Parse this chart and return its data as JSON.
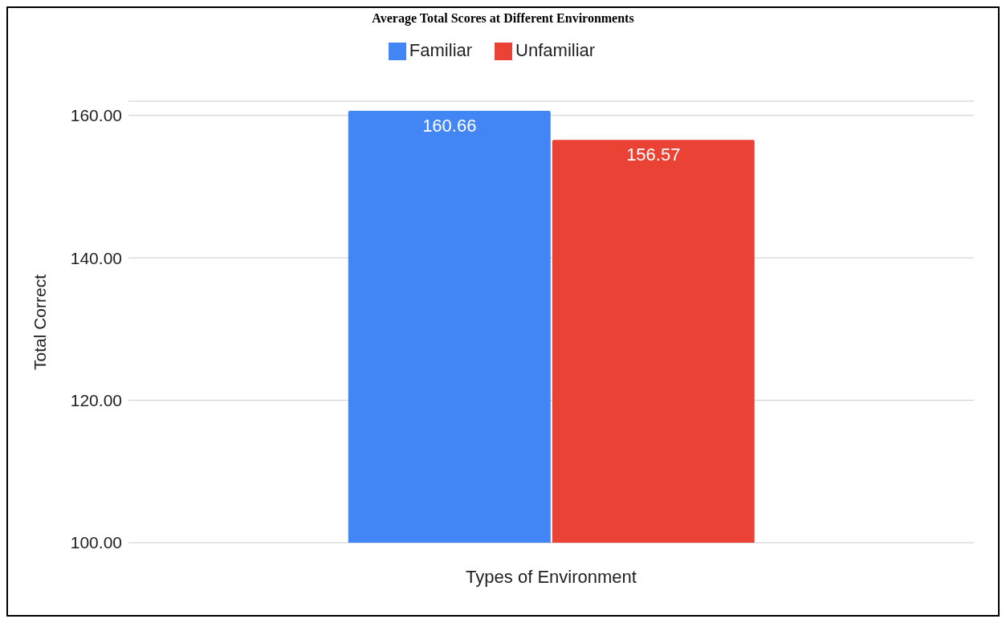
{
  "chart_data": {
    "type": "bar",
    "title": "Average Total Scores at Different Environments",
    "xlabel": "Types of Environment",
    "ylabel": "Total Correct",
    "categories": [
      null
    ],
    "series": [
      {
        "name": "Familiar",
        "color": "#4285f4",
        "values": [
          160.66
        ]
      },
      {
        "name": "Unfamiliar",
        "color": "#ea4335",
        "values": [
          156.57
        ]
      }
    ],
    "ylim": [
      100,
      162
    ],
    "yticks": [
      {
        "value": 100,
        "label": "100.00"
      },
      {
        "value": 120,
        "label": "120.00"
      },
      {
        "value": 140,
        "label": "140.00"
      },
      {
        "value": 160,
        "label": "160.00"
      }
    ],
    "grid": "y",
    "legend": "top",
    "data_labels": true
  }
}
